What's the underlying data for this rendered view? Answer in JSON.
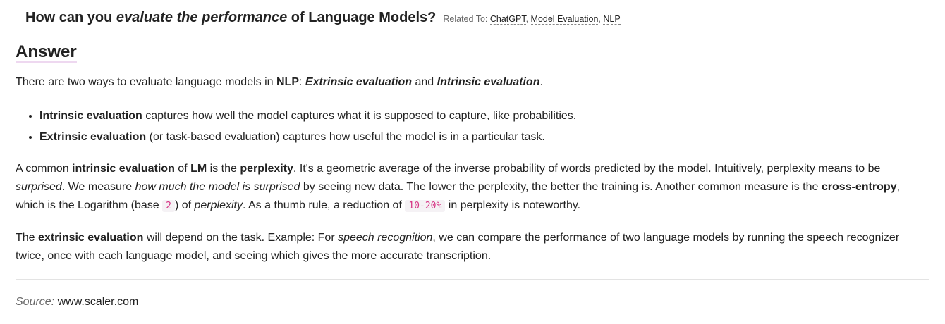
{
  "question": {
    "prefix": "How can you ",
    "emphasis": "evaluate the performance",
    "suffix": " of Language Models?",
    "related_label": "Related To:",
    "tags": [
      "ChatGPT",
      "Model Evaluation",
      "NLP"
    ],
    "tag_sep": ", "
  },
  "answer": {
    "heading": "Answer",
    "intro": {
      "t1": "There are two ways to evaluate language models in ",
      "nlp": "NLP",
      "t2": ": ",
      "extrinsic": "Extrinsic evaluation",
      "t3": " and ",
      "intrinsic": "Intrinsic evaluation",
      "t4": "."
    },
    "bullets": [
      {
        "bold": "Intrinsic evaluation",
        "text": " captures how well the model captures what it is supposed to capture, like probabilities."
      },
      {
        "bold": "Extrinsic evaluation",
        "text": " (or task-based evaluation) captures how useful the model is in a particular task."
      }
    ],
    "para2": {
      "t1": "A common ",
      "b1": "intrinsic evaluation",
      "t2": " of ",
      "b2": "LM",
      "t3": " is the ",
      "b3": "perplexity",
      "t4": ". It's a geometric average of the inverse probability of words predicted by the model. Intuitively, perplexity means to be ",
      "i1": "surprised",
      "t5": ". We measure ",
      "i2": "how much the model is surprised",
      "t6": " by seeing new data. The lower the perplexity, the better the training is. Another common measure is the ",
      "b4": "cross-entropy",
      "t7": ", which is the Logarithm (base ",
      "code1": "2",
      "t8": ") of ",
      "i3": "perplexity",
      "t9": ". As a thumb rule, a reduction of ",
      "code2": "10-20%",
      "t10": " in perplexity is noteworthy."
    },
    "para3": {
      "t1": "The ",
      "b1": "extrinsic evaluation",
      "t2": " will depend on the task. Example: For ",
      "i1": "speech recognition",
      "t3": ", we can compare the performance of two language models by running the speech recognizer twice, once with each language model, and seeing which gives the more accurate transcription."
    }
  },
  "source": {
    "label": "Source:",
    "site": "www.scaler.com"
  }
}
